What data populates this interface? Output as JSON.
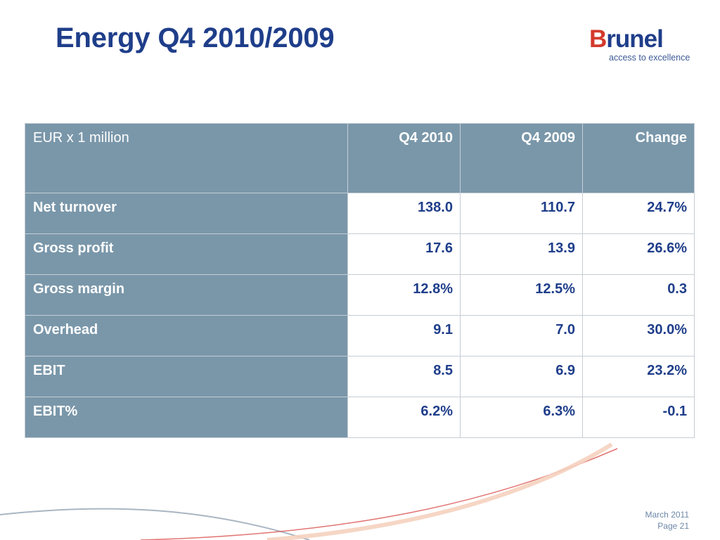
{
  "slide": {
    "title": "Energy Q4 2010/2009"
  },
  "logo": {
    "name_first": "B",
    "name_rest": "runel",
    "tagline": "access to excellence",
    "colors": {
      "primary": "#1f3e8a",
      "accent": "#d33a2c"
    }
  },
  "table": {
    "headers": [
      "EUR x 1 million",
      "Q4 2010",
      "Q4 2009",
      "Change"
    ],
    "rows": [
      {
        "label": "Net turnover",
        "q4_2010": "138.0",
        "q4_2009": "110.7",
        "change": "24.7%"
      },
      {
        "label": "Gross profit",
        "q4_2010": "17.6",
        "q4_2009": "13.9",
        "change": "26.6%"
      },
      {
        "label": "Gross margin",
        "q4_2010": "12.8%",
        "q4_2009": "12.5%",
        "change": "0.3"
      },
      {
        "label": "Overhead",
        "q4_2010": "9.1",
        "q4_2009": "7.0",
        "change": "30.0%"
      },
      {
        "label": "EBIT",
        "q4_2010": "8.5",
        "q4_2009": "6.9",
        "change": "23.2%"
      },
      {
        "label": "EBIT%",
        "q4_2010": "6.2%",
        "q4_2009": "6.3%",
        "change": "-0.1"
      }
    ],
    "colors": {
      "header_bg": "#7a97aa",
      "value_text": "#1f3e8a"
    }
  },
  "footer": {
    "date": "March 2011",
    "page": "Page 21"
  }
}
